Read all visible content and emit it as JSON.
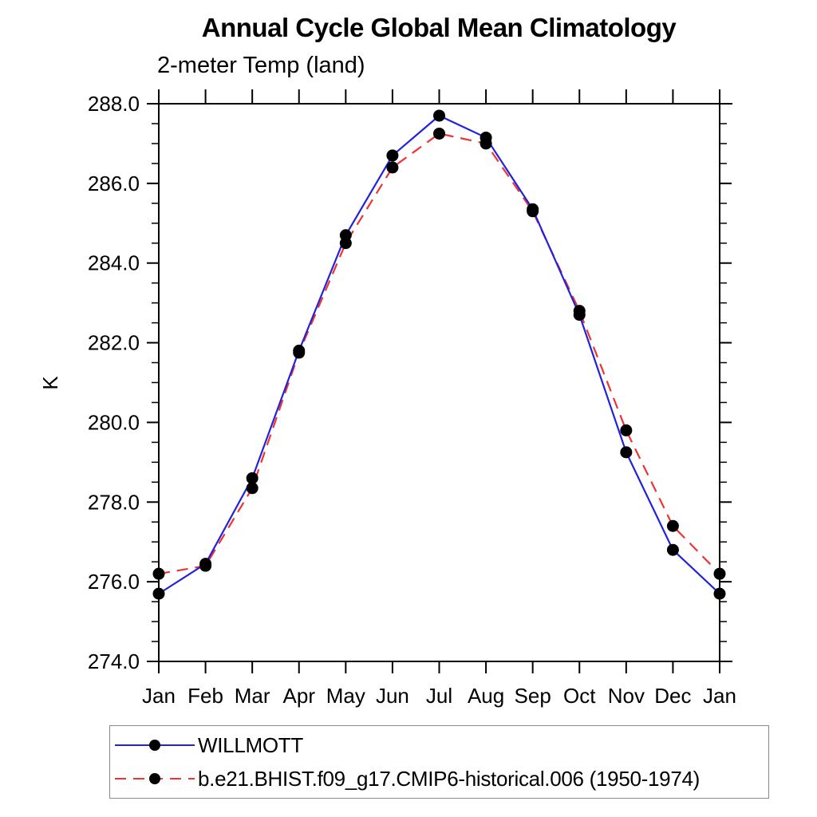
{
  "title": "Annual Cycle Global Mean Climatology",
  "subtitle": "2-meter Temp (land)",
  "colors": {
    "axis": "#000000",
    "marker": "#000000",
    "obs_line": "#2222dd",
    "model_line": "#ee3333",
    "legend_border": "#8a8a8a"
  },
  "chart_data": {
    "type": "line",
    "x_categories": [
      "Jan",
      "Feb",
      "Mar",
      "Apr",
      "May",
      "Jun",
      "Jul",
      "Aug",
      "Sep",
      "Oct",
      "Nov",
      "Dec",
      "Jan"
    ],
    "ylabel": "K",
    "ylim": [
      274.0,
      288.0
    ],
    "ytick_step": 2.0,
    "ytick_minor_step": 0.5,
    "ytick_labels": [
      "274.0",
      "276.0",
      "278.0",
      "280.0",
      "282.0",
      "284.0",
      "286.0",
      "288.0"
    ],
    "grid": false,
    "legend_position": "below-left",
    "marker": "filled-circle",
    "series": [
      {
        "name": "WILLMOTT",
        "style": "solid",
        "color": "#2222dd",
        "values": [
          275.7,
          276.45,
          278.6,
          281.8,
          284.7,
          286.7,
          287.7,
          287.15,
          285.35,
          282.7,
          279.25,
          276.8,
          275.7
        ]
      },
      {
        "name": "b.e21.BHIST.f09_g17.CMIP6-historical.006 (1950-1974)",
        "style": "dashed",
        "color": "#ee3333",
        "values": [
          276.2,
          276.4,
          278.35,
          281.75,
          284.5,
          286.4,
          287.25,
          287.0,
          285.3,
          282.8,
          279.8,
          277.4,
          276.2
        ]
      }
    ]
  }
}
